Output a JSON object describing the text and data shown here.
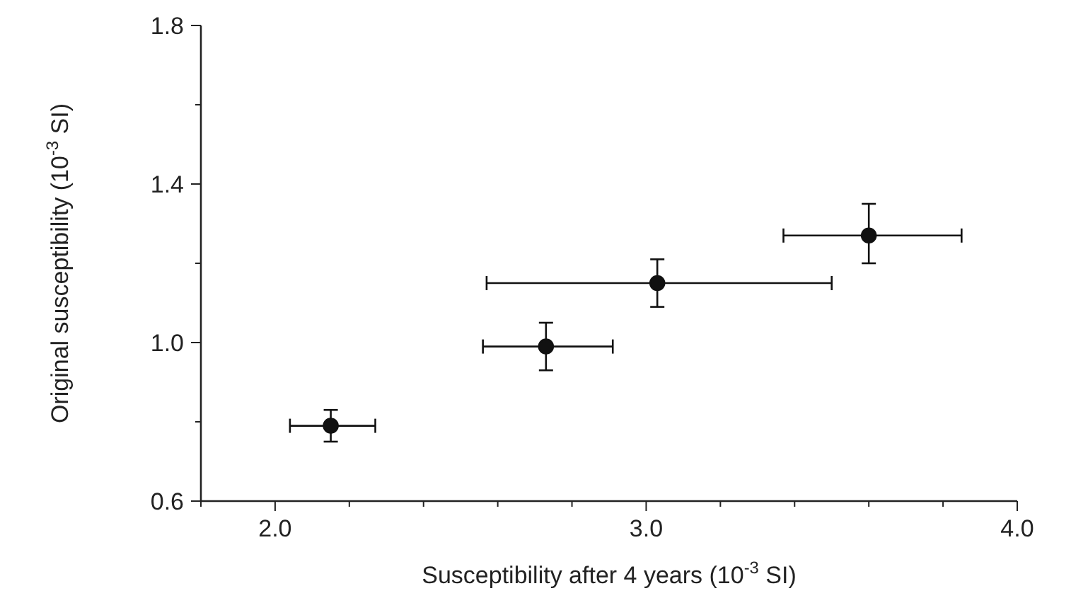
{
  "chart_data": {
    "type": "scatter",
    "xlabel": "Susceptibility after 4 years (10$^{-3}$ SI)",
    "ylabel": "Original susceptibility (10$^{-3}$ SI)",
    "x": [
      2.15,
      2.73,
      3.03,
      3.6
    ],
    "values": [
      0.79,
      0.99,
      1.15,
      1.27
    ],
    "errors": [
      [
        0.75,
        0.83
      ],
      [
        0.93,
        1.05
      ],
      [
        1.09,
        1.21
      ],
      [
        1.2,
        1.35
      ]
    ],
    "xerrors": [
      [
        2.04,
        2.27
      ],
      [
        2.56,
        2.91
      ],
      [
        2.57,
        3.5
      ],
      [
        3.37,
        3.85
      ]
    ],
    "color": "#111111",
    "marker": "circle",
    "xlim": [
      1.8,
      4.0
    ],
    "xticks": [
      {
        "value": 1.8,
        "label": null
      },
      {
        "value": 2.0,
        "label": "2.0"
      },
      {
        "value": 2.2,
        "label": null
      },
      {
        "value": 2.4,
        "label": null
      },
      {
        "value": 2.6,
        "label": null
      },
      {
        "value": 2.8,
        "label": null
      },
      {
        "value": 3.0,
        "label": "3.0"
      },
      {
        "value": 3.2,
        "label": null
      },
      {
        "value": 3.4,
        "label": null
      },
      {
        "value": 3.6,
        "label": null
      },
      {
        "value": 3.8,
        "label": null
      },
      {
        "value": 4.0,
        "label": "4.0"
      }
    ],
    "ylim": [
      0.6,
      1.8
    ],
    "yticks": [
      {
        "value": 0.6,
        "label": "0.6"
      },
      {
        "value": 0.8,
        "label": null
      },
      {
        "value": 1.0,
        "label": "1.0"
      },
      {
        "value": 1.2,
        "label": null
      },
      {
        "value": 1.4,
        "label": "1.4"
      },
      {
        "value": 1.6,
        "label": null
      },
      {
        "value": 1.8,
        "label": "1.8"
      }
    ],
    "grid": false
  }
}
